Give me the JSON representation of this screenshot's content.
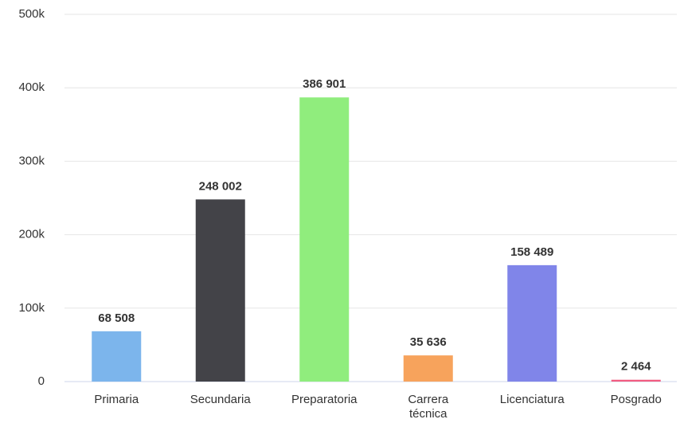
{
  "chart_data": {
    "type": "bar",
    "categories": [
      "Primaria",
      "Secundaria",
      "Preparatoria",
      "Carrera técnica",
      "Licenciatura",
      "Posgrado"
    ],
    "values": [
      68508,
      248002,
      386901,
      35636,
      158489,
      2464
    ],
    "value_labels": [
      "68 508",
      "248 002",
      "386 901",
      "35 636",
      "158 489",
      "2 464"
    ],
    "colors": [
      "#7cb5ec",
      "#434348",
      "#90ed7d",
      "#f7a35c",
      "#8085e9",
      "#f15c80"
    ],
    "ylim": [
      0,
      500000
    ],
    "yticks": [
      {
        "value": 0,
        "label": "0"
      },
      {
        "value": 100000,
        "label": "100k"
      },
      {
        "value": 200000,
        "label": "200k"
      },
      {
        "value": 300000,
        "label": "300k"
      },
      {
        "value": 400000,
        "label": "400k"
      },
      {
        "value": 500000,
        "label": "500k"
      }
    ],
    "grid": true
  }
}
